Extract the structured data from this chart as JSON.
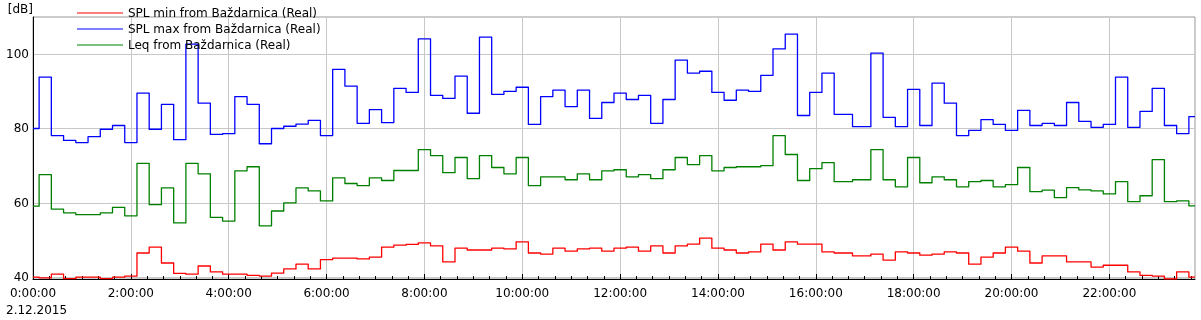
{
  "chart_data": {
    "type": "step",
    "ylabel": "[dB]",
    "annotations": [
      "2.12.2015"
    ],
    "x": [
      0,
      0.25,
      0.5,
      0.75,
      1,
      1.25,
      1.5,
      1.75,
      2,
      2.25,
      2.5,
      2.75,
      3,
      3.25,
      3.5,
      3.75,
      4,
      4.25,
      4.5,
      4.75,
      5,
      5.25,
      5.5,
      5.75,
      6,
      6.25,
      6.5,
      6.75,
      7,
      7.25,
      7.5,
      7.75,
      8,
      8.25,
      8.5,
      8.75,
      9,
      9.25,
      9.5,
      9.75,
      10,
      10.25,
      10.5,
      10.75,
      11,
      11.25,
      11.5,
      11.75,
      12,
      12.25,
      12.5,
      12.75,
      13,
      13.25,
      13.5,
      13.75,
      14,
      14.25,
      14.5,
      14.75,
      15,
      15.25,
      15.5,
      15.75,
      16,
      16.25,
      16.5,
      17,
      17.25,
      17.5,
      17.75,
      18,
      18.25,
      18.5,
      18.75,
      19,
      19.25,
      19.5,
      19.75,
      20,
      20.25,
      20.5,
      20.75,
      21,
      21.25,
      21.5,
      21.75,
      22,
      22.25,
      22.5,
      22.75,
      23,
      23.25,
      23.5,
      23.75
    ],
    "series": [
      {
        "name": "SPL min from Baždarnica (Real)",
        "color": "#ff0000",
        "values": [
          40.0,
          39.8,
          40.8,
          39.6,
          40.0,
          40.0,
          39.6,
          40.0,
          40.3,
          46.5,
          48.1,
          43.8,
          41.0,
          40.8,
          43.0,
          41.4,
          40.8,
          40.8,
          40.5,
          40.3,
          41.1,
          42.2,
          43.5,
          42.2,
          44.7,
          45.1,
          45.1,
          44.9,
          45.4,
          48.1,
          48.6,
          48.8,
          49.2,
          48.4,
          44.1,
          47.8,
          47.3,
          47.3,
          47.8,
          47.6,
          49.5,
          46.5,
          46.2,
          47.8,
          47.0,
          47.6,
          47.8,
          47.0,
          47.8,
          48.1,
          47.0,
          48.4,
          46.5,
          48.4,
          48.9,
          50.5,
          47.8,
          47.3,
          46.5,
          46.8,
          48.9,
          47.3,
          49.5,
          48.9,
          48.9,
          46.8,
          46.5,
          45.7,
          46.2,
          44.6,
          46.8,
          46.5,
          45.9,
          46.2,
          46.8,
          46.5,
          43.5,
          45.4,
          46.5,
          48.1,
          47.0,
          43.8,
          45.7,
          45.7,
          44.1,
          44.1,
          42.7,
          43.2,
          43.2,
          41.4,
          40.5,
          40.3,
          39.5,
          41.4,
          40.0
        ]
      },
      {
        "name": "SPL max from Baždarnica (Real)",
        "color": "#0000ff",
        "values": [
          80.0,
          93.8,
          78.1,
          76.8,
          76.2,
          77.8,
          79.8,
          80.8,
          76.2,
          89.5,
          79.8,
          86.5,
          77.0,
          102.7,
          86.8,
          78.4,
          78.6,
          88.6,
          86.5,
          75.9,
          80.0,
          80.6,
          81.2,
          82.2,
          78.1,
          95.9,
          91.4,
          81.4,
          85.1,
          81.6,
          90.8,
          89.7,
          104.1,
          88.9,
          88.1,
          94.1,
          84.1,
          104.6,
          89.2,
          90.0,
          91.1,
          81.1,
          88.6,
          90.3,
          85.9,
          90.3,
          82.7,
          87.0,
          89.5,
          87.8,
          88.9,
          81.4,
          87.8,
          98.4,
          94.9,
          95.4,
          89.7,
          87.6,
          90.3,
          90.0,
          94.3,
          101.4,
          105.4,
          83.5,
          89.7,
          94.9,
          83.8,
          80.5,
          100.3,
          83.0,
          80.5,
          90.5,
          80.8,
          92.2,
          86.8,
          78.1,
          79.5,
          82.4,
          81.1,
          79.5,
          84.9,
          80.8,
          81.4,
          80.8,
          87.0,
          81.9,
          80.3,
          81.1,
          93.8,
          80.3,
          84.6,
          90.8,
          80.8,
          78.6,
          83.2
        ]
      },
      {
        "name": "Leq from Baždarnica (Real)",
        "color": "#008000",
        "values": [
          59.1,
          67.6,
          58.3,
          57.3,
          56.8,
          56.8,
          57.3,
          58.8,
          56.5,
          70.6,
          59.5,
          64.0,
          54.6,
          70.6,
          67.8,
          56.1,
          55.1,
          68.6,
          69.7,
          53.8,
          57.8,
          60.0,
          64.0,
          63.2,
          60.5,
          66.7,
          65.2,
          64.6,
          66.7,
          66.0,
          68.7,
          68.7,
          74.3,
          72.7,
          68.1,
          72.2,
          66.5,
          72.7,
          69.5,
          67.8,
          72.2,
          64.6,
          67.0,
          67.0,
          66.2,
          67.8,
          66.2,
          68.6,
          68.9,
          67.0,
          67.6,
          66.5,
          68.9,
          72.2,
          70.3,
          72.7,
          68.6,
          69.5,
          69.7,
          69.7,
          70.0,
          78.1,
          73.0,
          66.0,
          69.2,
          70.8,
          65.7,
          66.2,
          74.3,
          66.2,
          64.3,
          72.2,
          65.4,
          67.0,
          66.2,
          64.3,
          65.7,
          66.0,
          64.3,
          64.9,
          69.5,
          63.0,
          63.4,
          61.4,
          64.1,
          63.5,
          63.2,
          62.4,
          65.7,
          60.3,
          61.9,
          71.6,
          60.3,
          60.5,
          59.2
        ]
      }
    ],
    "xlim": [
      0,
      23.75
    ],
    "xticks": [
      {
        "value": 0,
        "label": "0:00:00"
      },
      {
        "value": 2,
        "label": "2:00:00"
      },
      {
        "value": 4,
        "label": "4:00:00"
      },
      {
        "value": 6,
        "label": "6:00:00"
      },
      {
        "value": 8,
        "label": "8:00:00"
      },
      {
        "value": 10,
        "label": "10:00:00"
      },
      {
        "value": 12,
        "label": "12:00:00"
      },
      {
        "value": 14,
        "label": "14:00:00"
      },
      {
        "value": 16,
        "label": "16:00:00"
      },
      {
        "value": 18,
        "label": "18:00:00"
      },
      {
        "value": 20,
        "label": "20:00:00"
      },
      {
        "value": 22,
        "label": "22:00:00"
      }
    ],
    "ylim": [
      39.5,
      110
    ],
    "yticks": [
      40,
      60,
      80,
      100
    ],
    "grid": true,
    "legend": "top left",
    "marker": "none",
    "line_style": "solid"
  }
}
